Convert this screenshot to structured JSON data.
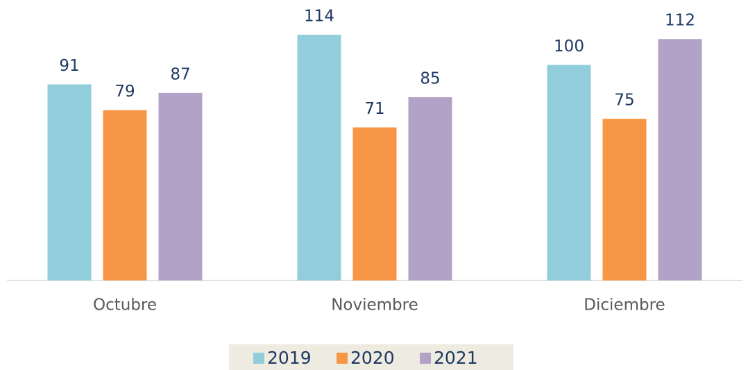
{
  "chart_data": {
    "type": "bar",
    "categories": [
      "Octubre",
      "Noviembre",
      "Diciembre"
    ],
    "series": [
      {
        "name": "2019",
        "color": "#92cddc",
        "values": [
          91,
          114,
          100
        ]
      },
      {
        "name": "2020",
        "color": "#f79646",
        "values": [
          79,
          71,
          75
        ]
      },
      {
        "name": "2021",
        "color": "#b3a2c7",
        "values": [
          87,
          85,
          112
        ]
      }
    ],
    "ylim": [
      0,
      120
    ],
    "grid": false,
    "legend": "bottom"
  }
}
